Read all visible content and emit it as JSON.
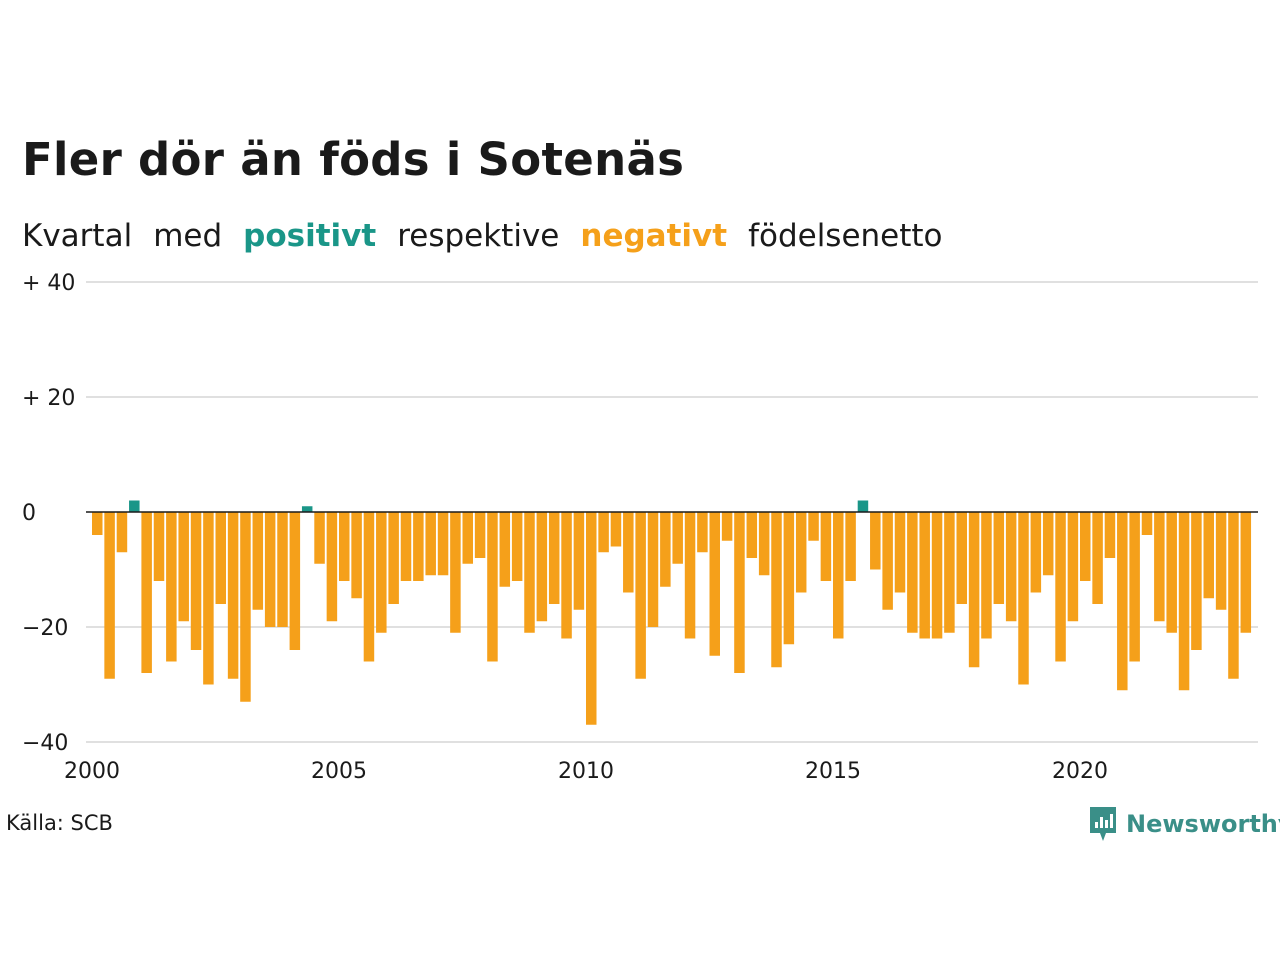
{
  "header": {
    "title": "Fler dör än föds i Sotenäs",
    "subtitle": {
      "word1": "Kvartal",
      "word2": "med",
      "positive_word": "positivt",
      "word3": "respektive",
      "negative_word": "negativt",
      "word4": "födelsenetto"
    }
  },
  "footer": {
    "source": "Källa: SCB",
    "brand": "Newsworthy"
  },
  "colors": {
    "positive": "#1a9688",
    "negative": "#f5a01a",
    "brand": "#3a8f88",
    "grid": "#e0e0e0",
    "zero_line": "#1a1a1a"
  },
  "chart_data": {
    "type": "bar",
    "x_start": "2000 Q1",
    "y_ticks": [
      40,
      20,
      0,
      -20,
      -40
    ],
    "y_tick_labels": [
      "+ 40",
      "+ 20",
      "0",
      "−20",
      "−40"
    ],
    "x_ticks": [
      2000,
      2005,
      2010,
      2015,
      2020
    ],
    "x_tick_labels": [
      "2000",
      "2005",
      "2010",
      "2015",
      "2020"
    ],
    "ylim": [
      -40,
      40
    ],
    "values": [
      -4,
      -29,
      -7,
      2,
      -28,
      -12,
      -26,
      -19,
      -24,
      -30,
      -16,
      -29,
      -33,
      -17,
      -20,
      -20,
      -24,
      1,
      -9,
      -19,
      -12,
      -15,
      -26,
      -21,
      -16,
      -12,
      -12,
      -11,
      -11,
      -21,
      -9,
      -8,
      -26,
      -13,
      -12,
      -21,
      -19,
      -16,
      -22,
      -17,
      -37,
      -7,
      -6,
      -14,
      -29,
      -20,
      -13,
      -9,
      -22,
      -7,
      -25,
      -5,
      -28,
      -8,
      -11,
      -27,
      -23,
      -14,
      -5,
      -12,
      -22,
      -12,
      2,
      -10,
      -17,
      -14,
      -21,
      -22,
      -22,
      -21,
      -16,
      -27,
      -22,
      -16,
      -19,
      -30,
      -14,
      -11,
      -26,
      -19,
      -12,
      -16,
      -8,
      -31,
      -26,
      -4,
      -19,
      -21,
      -31,
      -24,
      -15,
      -17,
      -29,
      -21
    ]
  }
}
